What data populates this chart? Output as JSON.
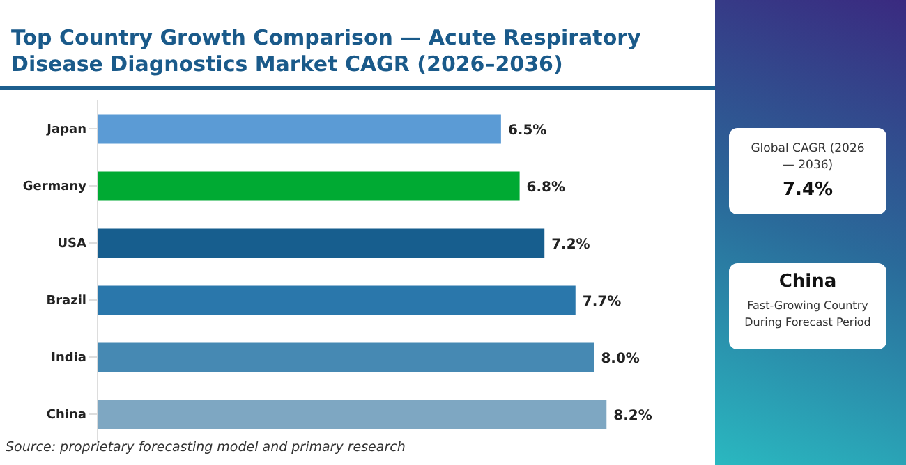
{
  "chart_data": {
    "type": "bar",
    "orientation": "horizontal",
    "title": "Top Country Growth Comparison — Acute Respiratory Disease Diagnostics Market CAGR (2026–2036)",
    "categories": [
      "Japan",
      "Germany",
      "USA",
      "Brazil",
      "India",
      "China"
    ],
    "values": [
      6.5,
      6.8,
      7.2,
      7.7,
      8.0,
      8.2
    ],
    "colors": [
      "#5b9bd5",
      "#00aa33",
      "#175e8e",
      "#2a77ab",
      "#4689b3",
      "#7ea7c2"
    ],
    "value_labels": [
      "6.5%",
      "6.8%",
      "7.2%",
      "7.7%",
      "8.0%",
      "8.2%"
    ],
    "annotations": [
      "Global CAGR (2026 — 2036)",
      "7.4%",
      "China",
      "Fast-Growing Country During Forecast Period",
      "Source: proprietary forecasting model and primary research"
    ],
    "grid": false,
    "legend": false
  }
}
